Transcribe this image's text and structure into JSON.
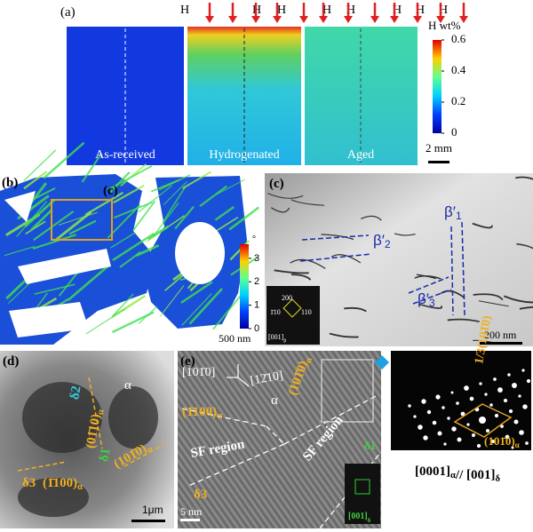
{
  "panel_a": {
    "label": "(a)",
    "h_labels": [
      "H",
      "H",
      "H",
      "H",
      "H",
      "H",
      "H",
      "H"
    ],
    "colorbar": {
      "title": "H wt%",
      "lim": [
        0,
        0.6
      ],
      "ticks": [
        0,
        0.2,
        0.4,
        0.6
      ]
    },
    "images": [
      "As-received",
      "Hydrogenated",
      "Aged"
    ],
    "scale_bar": "2 mm"
  },
  "panel_b": {
    "label": "(b)",
    "inset_ref": "(c)",
    "colorbar": {
      "unit": "°",
      "lim": [
        0,
        3.6
      ],
      "ticks": [
        0,
        1,
        2,
        3
      ]
    },
    "scale_bar": "500 nm"
  },
  "panel_c": {
    "label": "(c)",
    "annotations": [
      {
        "base": "β′",
        "sub": "1"
      },
      {
        "base": "β′",
        "sub": "2"
      },
      {
        "base": "β′",
        "sub": "3"
      }
    ],
    "inset": {
      "spots": [
        "200",
        "1̄10",
        "110"
      ],
      "zone": {
        "base": "[001]",
        "sub": "β"
      }
    },
    "scale_bar": "200 nm"
  },
  "panel_d": {
    "label": "(d)",
    "phase": "α",
    "variants": [
      "δ2",
      "δ1",
      "δ3"
    ],
    "planes": [
      {
        "base": "(01̄10)",
        "sub": "α"
      },
      {
        "base": "(101̄0)",
        "sub": "α"
      },
      {
        "base": "(1̄100)",
        "sub": "α"
      }
    ],
    "scale_bar": "1μm"
  },
  "panel_e": {
    "label": "(e)",
    "directions": [
      "[101̄0]",
      "[12̄10]"
    ],
    "phase": "α",
    "planes": [
      {
        "base": "(101̄0)",
        "sub": "α"
      },
      {
        "base": "(1̄100)",
        "sub": "α"
      }
    ],
    "regions": [
      "SF region",
      "SF region"
    ],
    "variants": [
      "δ1",
      "δ3"
    ],
    "scale_bar": "5 nm",
    "inset_zone": {
      "base": "[001]",
      "sub": "δ"
    }
  },
  "fft": {
    "spots": [
      "1/3(101̄0)",
      {
        "base": "(101̄0)",
        "sub": "α"
      }
    ],
    "caption": [
      {
        "base": "[0001]",
        "sub": "α"
      },
      {
        "base": "// [001]",
        "sub": "δ"
      }
    ]
  }
}
